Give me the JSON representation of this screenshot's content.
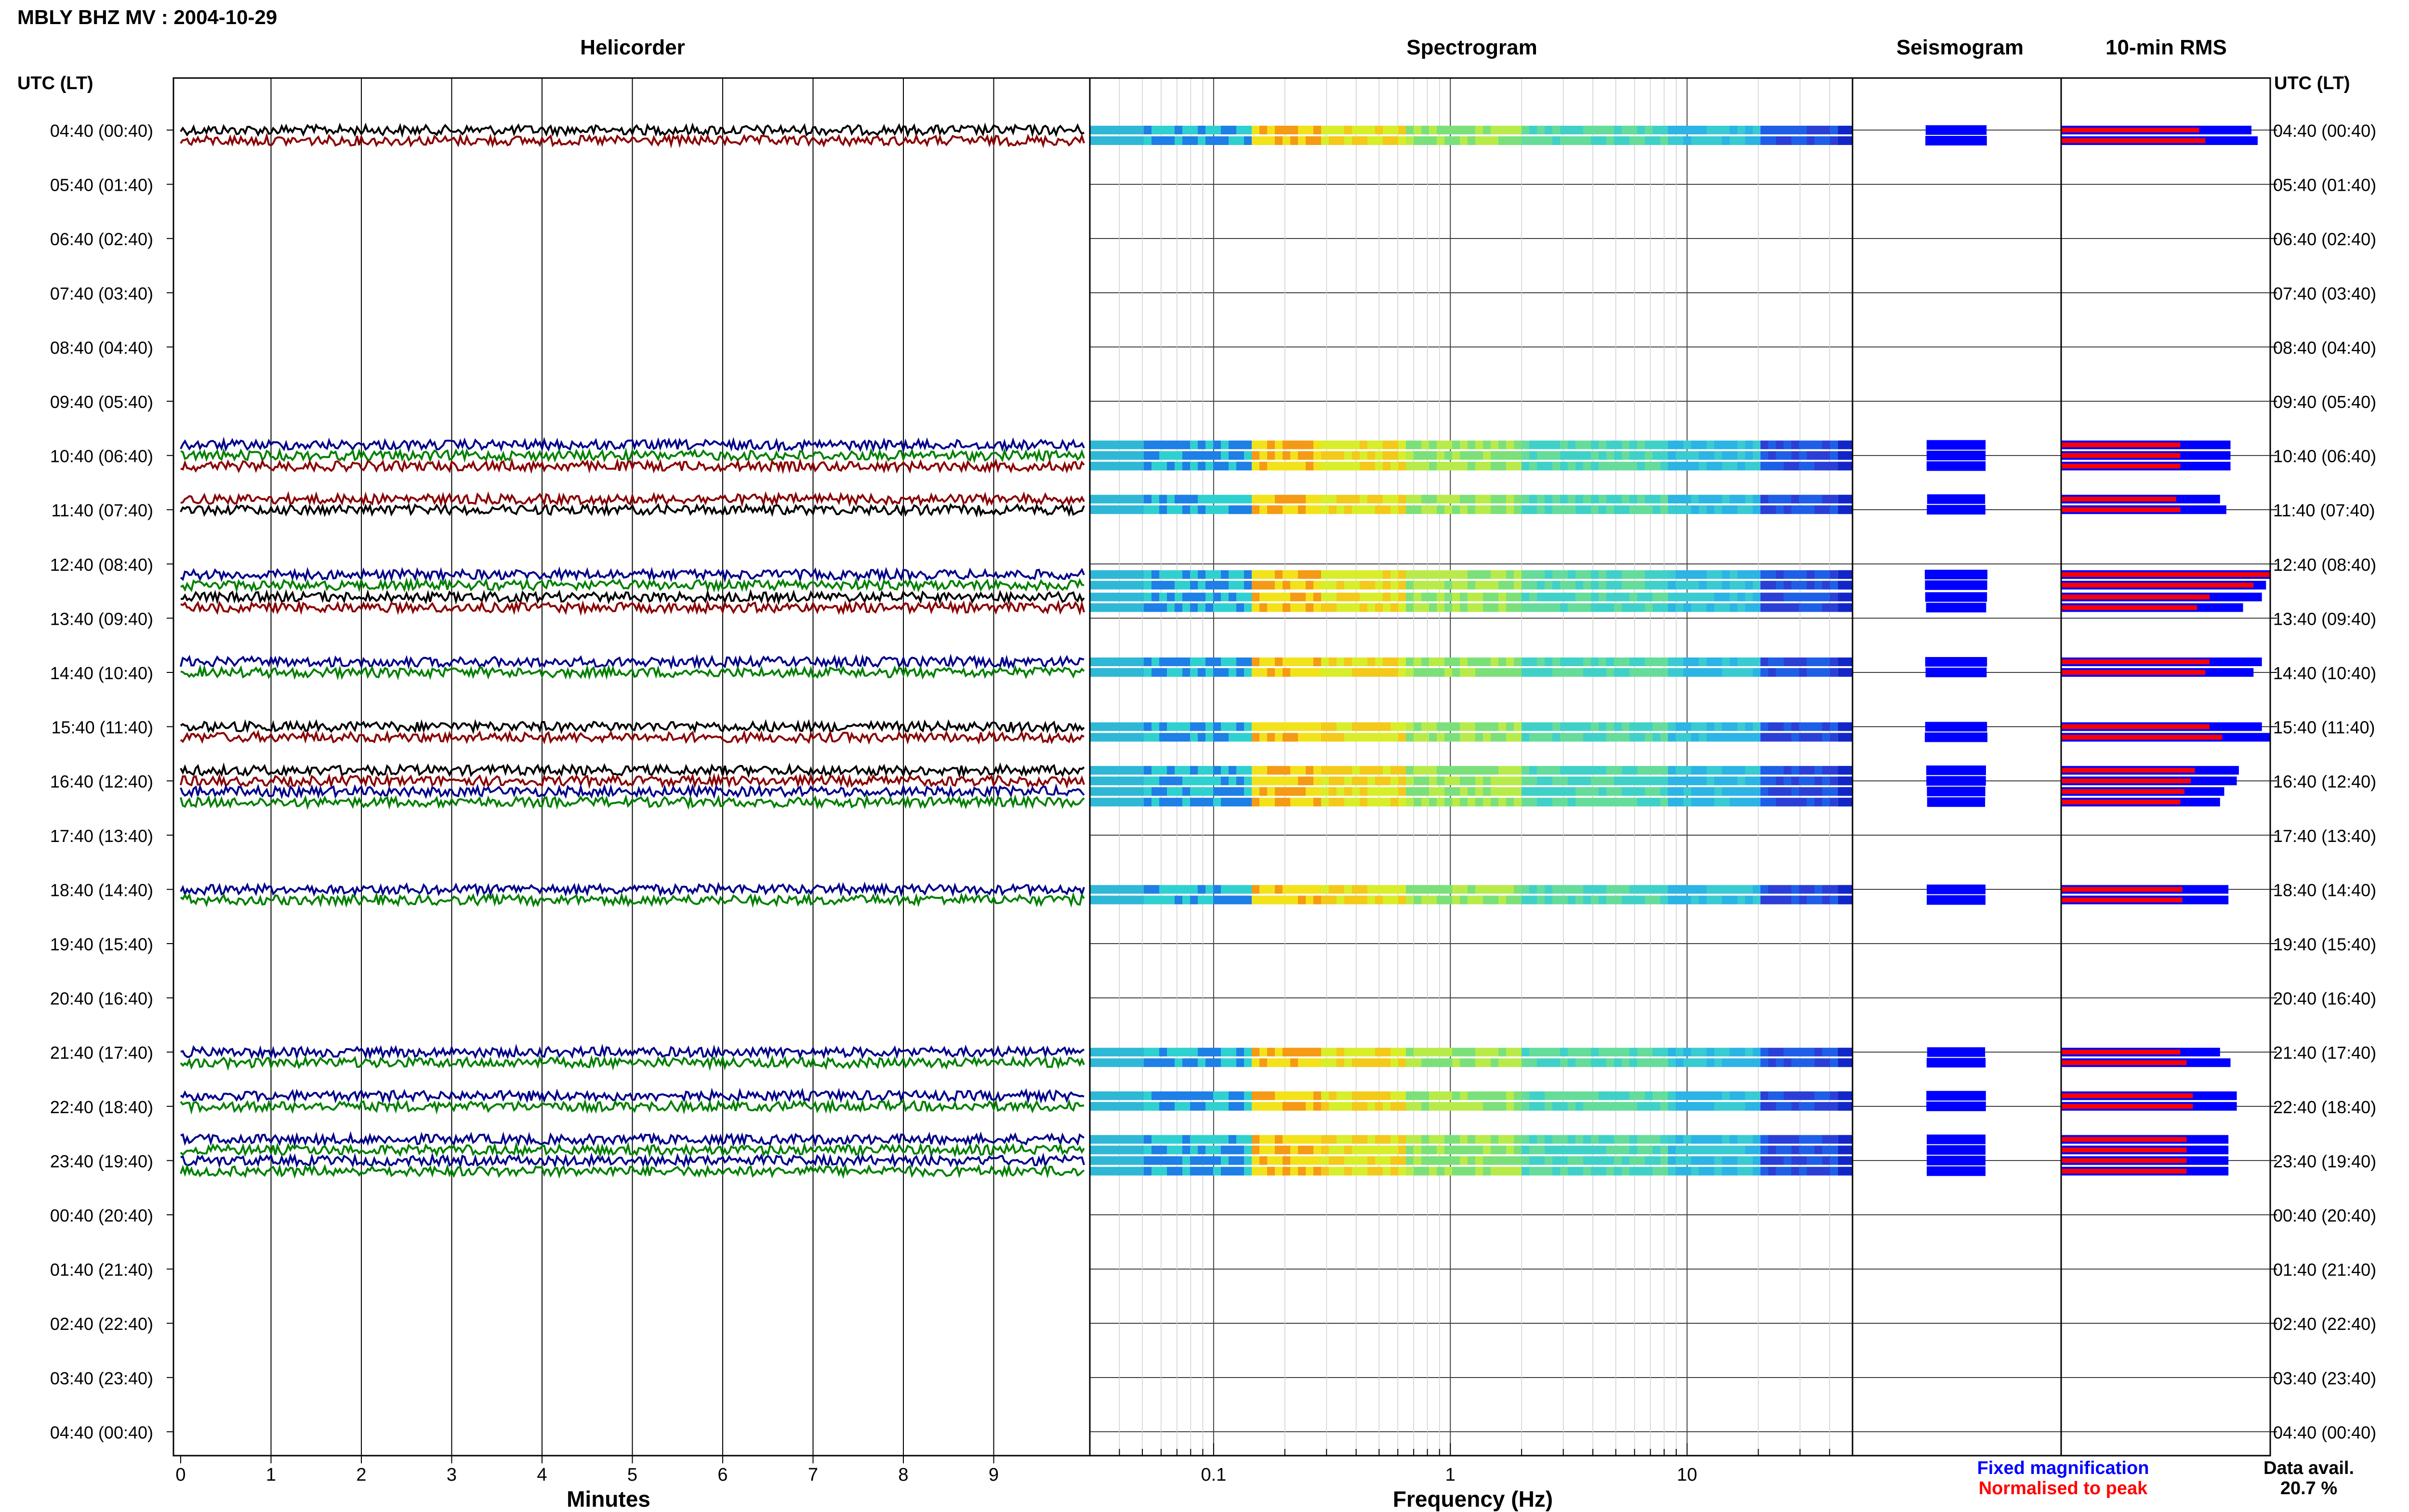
{
  "title": "MBLY BHZ MV : 2004-10-29",
  "panels": {
    "helicorder": "Helicorder",
    "spectrogram": "Spectrogram",
    "seismogram": "Seismogram",
    "rms": "10-min RMS"
  },
  "axis_header_left": "UTC (LT)",
  "axis_header_right": "UTC (LT)",
  "hour_labels": [
    "04:40 (00:40)",
    "05:40 (01:40)",
    "06:40 (02:40)",
    "07:40 (03:40)",
    "08:40 (04:40)",
    "09:40 (05:40)",
    "10:40 (06:40)",
    "11:40 (07:40)",
    "12:40 (08:40)",
    "13:40 (09:40)",
    "14:40 (10:40)",
    "15:40 (11:40)",
    "16:40 (12:40)",
    "17:40 (13:40)",
    "18:40 (14:40)",
    "19:40 (15:40)",
    "20:40 (16:40)",
    "21:40 (17:40)",
    "22:40 (18:40)",
    "23:40 (19:40)",
    "00:40 (20:40)",
    "01:40 (21:40)",
    "02:40 (22:40)",
    "03:40 (23:40)",
    "04:40 (00:40)"
  ],
  "minutes_ticks": [
    "0",
    "1",
    "2",
    "3",
    "4",
    "5",
    "6",
    "7",
    "8",
    "9"
  ],
  "minutes_label": "Minutes",
  "freq_ticks": [
    "0.1",
    "1",
    "10"
  ],
  "freq_label": "Frequency (Hz)",
  "legend": {
    "fixed": "Fixed magnification",
    "normalised": "Normalised to peak",
    "fixed_color": "#0000ff",
    "normalised_color": "#ff0000"
  },
  "data_avail_label": "Data avail.",
  "data_avail_value": "20.7 %",
  "colors": {
    "trace_black": "#000000",
    "trace_red": "#8b0000",
    "trace_blue": "#00008b",
    "trace_green": "#008000",
    "rms_blue": "#0000ff",
    "rms_red": "#ff0000"
  },
  "chart_data": {
    "type": "heatmap",
    "x_minutes_range": [
      0,
      10
    ],
    "freq_range_hz": [
      0.03,
      50
    ],
    "freq_scale": "log",
    "grid": true,
    "segments": [
      {
        "row": 0,
        "offset": 0,
        "color": "black",
        "rms_fixed": 0.91,
        "rms_norm": 0.66
      },
      {
        "row": 0,
        "offset": 1,
        "color": "red",
        "rms_fixed": 0.94,
        "rms_norm": 0.69
      },
      {
        "row": 6,
        "offset": -1,
        "color": "blue",
        "rms_fixed": 0.81,
        "rms_norm": 0.57
      },
      {
        "row": 6,
        "offset": 0,
        "color": "green",
        "rms_fixed": 0.81,
        "rms_norm": 0.57
      },
      {
        "row": 6,
        "offset": 1,
        "color": "red",
        "rms_fixed": 0.81,
        "rms_norm": 0.57
      },
      {
        "row": 7,
        "offset": -1,
        "color": "red",
        "rms_fixed": 0.76,
        "rms_norm": 0.55
      },
      {
        "row": 7,
        "offset": 0,
        "color": "black",
        "rms_fixed": 0.79,
        "rms_norm": 0.57
      },
      {
        "row": 8,
        "offset": 1,
        "color": "blue",
        "rms_fixed": 1.0,
        "rms_norm": 1.0
      },
      {
        "row": 8,
        "offset": 2,
        "color": "green",
        "rms_fixed": 0.98,
        "rms_norm": 0.92
      },
      {
        "row": 9,
        "offset": -2,
        "color": "black",
        "rms_fixed": 0.96,
        "rms_norm": 0.71
      },
      {
        "row": 9,
        "offset": -1,
        "color": "red",
        "rms_fixed": 0.87,
        "rms_norm": 0.65
      },
      {
        "row": 10,
        "offset": -1,
        "color": "blue",
        "rms_fixed": 0.96,
        "rms_norm": 0.71
      },
      {
        "row": 10,
        "offset": 0,
        "color": "green",
        "rms_fixed": 0.92,
        "rms_norm": 0.69
      },
      {
        "row": 11,
        "offset": 0,
        "color": "black",
        "rms_fixed": 0.96,
        "rms_norm": 0.71
      },
      {
        "row": 11,
        "offset": 1,
        "color": "red",
        "rms_fixed": 1.0,
        "rms_norm": 0.77
      },
      {
        "row": 12,
        "offset": -1,
        "color": "black",
        "rms_fixed": 0.85,
        "rms_norm": 0.64
      },
      {
        "row": 12,
        "offset": 0,
        "color": "red",
        "rms_fixed": 0.84,
        "rms_norm": 0.62
      },
      {
        "row": 12,
        "offset": 1,
        "color": "blue",
        "rms_fixed": 0.78,
        "rms_norm": 0.59
      },
      {
        "row": 12,
        "offset": 2,
        "color": "green",
        "rms_fixed": 0.76,
        "rms_norm": 0.57
      },
      {
        "row": 14,
        "offset": 0,
        "color": "blue",
        "rms_fixed": 0.8,
        "rms_norm": 0.58
      },
      {
        "row": 14,
        "offset": 1,
        "color": "green",
        "rms_fixed": 0.8,
        "rms_norm": 0.58
      },
      {
        "row": 17,
        "offset": 0,
        "color": "blue",
        "rms_fixed": 0.76,
        "rms_norm": 0.57
      },
      {
        "row": 17,
        "offset": 1,
        "color": "green",
        "rms_fixed": 0.81,
        "rms_norm": 0.6
      },
      {
        "row": 18,
        "offset": -1,
        "color": "blue",
        "rms_fixed": 0.84,
        "rms_norm": 0.63
      },
      {
        "row": 18,
        "offset": 0,
        "color": "green",
        "rms_fixed": 0.84,
        "rms_norm": 0.63
      },
      {
        "row": 19,
        "offset": -2,
        "color": "blue",
        "rms_fixed": 0.8,
        "rms_norm": 0.6
      },
      {
        "row": 19,
        "offset": -1,
        "color": "green",
        "rms_fixed": 0.8,
        "rms_norm": 0.6
      },
      {
        "row": 19,
        "offset": 0,
        "color": "blue",
        "rms_fixed": 0.8,
        "rms_norm": 0.6
      },
      {
        "row": 19,
        "offset": 1,
        "color": "green",
        "rms_fixed": 0.8,
        "rms_norm": 0.6
      }
    ]
  }
}
